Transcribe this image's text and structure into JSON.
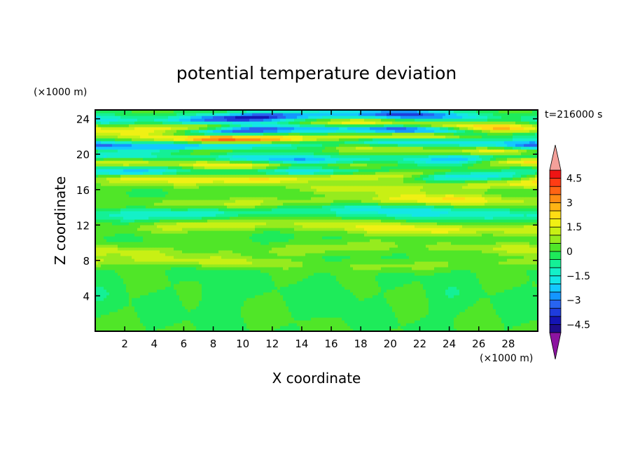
{
  "chart_data": {
    "type": "heatmap",
    "title": "potential temperature deviation",
    "xlabel": "X coordinate",
    "ylabel": "Z coordinate",
    "x_unit": "(×1000 m)",
    "y_unit": "(×1000 m)",
    "time_label": "t=216000 s",
    "xlim": [
      0,
      30
    ],
    "ylim": [
      0,
      25
    ],
    "x_ticks": [
      2,
      4,
      6,
      8,
      10,
      12,
      14,
      16,
      18,
      20,
      22,
      24,
      26,
      28
    ],
    "y_ticks": [
      4,
      8,
      12,
      16,
      20,
      24
    ],
    "colorbar": {
      "levels": [
        -5,
        -4.5,
        -4,
        -3.5,
        -3,
        -2.5,
        -2,
        -1.5,
        -1,
        -0.5,
        0,
        0.5,
        1,
        1.5,
        2,
        2.5,
        3,
        3.5,
        4,
        4.5,
        5
      ],
      "label_values": [
        4.5,
        3,
        1.5,
        0,
        -1.5,
        -3,
        -4.5
      ],
      "labels": [
        "4.5",
        "3",
        "1.5",
        "0",
        "−1.5",
        "−3",
        "−4.5"
      ],
      "colors": [
        "#1e0c8c",
        "#1414b4",
        "#1e3cdc",
        "#2864f0",
        "#1496ff",
        "#14c8ff",
        "#14e6e6",
        "#14f0c8",
        "#14f096",
        "#1eeb5a",
        "#50e628",
        "#96eb1e",
        "#c8f014",
        "#f0f014",
        "#ffdc14",
        "#ffb414",
        "#ff8c14",
        "#ff6414",
        "#ff3c14",
        "#ee1414"
      ],
      "over_color": "#f4a09a",
      "under_color": "#8c14a0"
    },
    "bands": [
      {
        "z": 24.2,
        "base": -2.5,
        "amp": 2.0,
        "width": 0.55,
        "kx": 0.35
      },
      {
        "z": 23.2,
        "base": 1.5,
        "amp": 1.5,
        "width": 0.6,
        "kx": 0.42
      },
      {
        "z": 22.6,
        "base": -2.8,
        "amp": 1.8,
        "width": 0.5,
        "kx": 0.31
      },
      {
        "z": 22.0,
        "base": 2.5,
        "amp": 1.5,
        "width": 0.55,
        "kx": 0.28
      },
      {
        "z": 21.2,
        "base": -3.0,
        "amp": 1.5,
        "width": 0.5,
        "kx": 0.37
      },
      {
        "z": 20.5,
        "base": 1.2,
        "amp": 1.5,
        "width": 0.6,
        "kx": 0.45
      },
      {
        "z": 19.6,
        "base": -2.5,
        "amp": 1.5,
        "width": 0.55,
        "kx": 0.33
      },
      {
        "z": 19.0,
        "base": 1.8,
        "amp": 1.2,
        "width": 0.5,
        "kx": 0.5
      },
      {
        "z": 18.0,
        "base": -2.2,
        "amp": 1.5,
        "width": 0.55,
        "kx": 0.36
      },
      {
        "z": 17.5,
        "base": 2.0,
        "amp": 1.0,
        "width": 0.5,
        "kx": 0.4
      },
      {
        "z": 16.5,
        "base": 1.0,
        "amp": 1.0,
        "width": 0.6,
        "kx": 0.3
      },
      {
        "z": 14.6,
        "base": 1.0,
        "amp": 1.0,
        "width": 0.7,
        "kx": 0.25
      },
      {
        "z": 13.5,
        "base": -1.2,
        "amp": 0.6,
        "width": 0.8,
        "kx": 0.22
      },
      {
        "z": 11.8,
        "base": 1.2,
        "amp": 0.8,
        "width": 0.7,
        "kx": 0.3
      },
      {
        "z": 9.3,
        "base": 1.0,
        "amp": 0.8,
        "width": 0.7,
        "kx": 0.28
      },
      {
        "z": 7.7,
        "base": 0.8,
        "amp": 0.7,
        "width": 0.6,
        "kx": 0.35
      }
    ]
  }
}
